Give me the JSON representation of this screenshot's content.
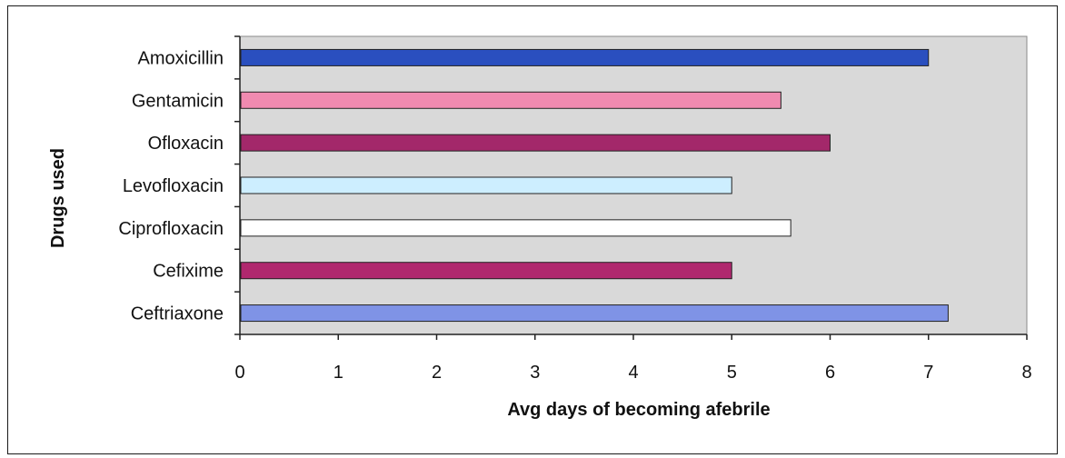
{
  "chart_data": {
    "type": "bar",
    "orientation": "horizontal",
    "categories": [
      "Amoxicillin",
      "Gentamicin",
      "Ofloxacin",
      "Levofloxacin",
      "Ciprofloxacin",
      "Cefixime",
      "Ceftriaxone"
    ],
    "values": [
      7.0,
      5.5,
      6.0,
      5.0,
      5.6,
      5.0,
      7.2
    ],
    "bar_colors": [
      "#2a4fbf",
      "#f08ab0",
      "#a3286a",
      "#cdeeff",
      "#ffffff",
      "#b0286e",
      "#7f93e6"
    ],
    "xlabel": "Avg days of becoming afebrile",
    "ylabel": "Drugs used",
    "xlim": [
      0,
      8
    ],
    "xticks": [
      "0",
      "1",
      "2",
      "3",
      "4",
      "5",
      "6",
      "7",
      "8"
    ],
    "grid": false,
    "plot_background": "#d9d9d9",
    "legend": "none"
  }
}
